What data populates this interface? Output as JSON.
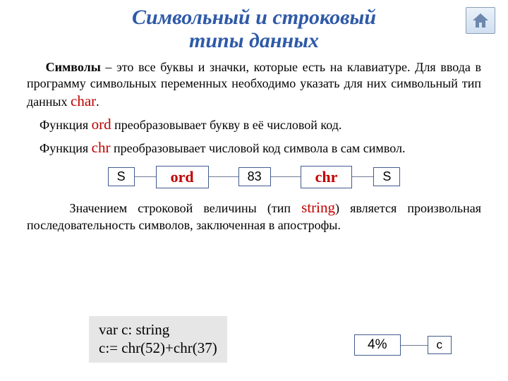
{
  "title": {
    "line1": "Символьный и строковый",
    "line2": "типы данных",
    "color": "#2e5aa8",
    "fontsize": 30
  },
  "home_icon": {
    "fill": "#6e87ad",
    "stroke": "#4a5f80"
  },
  "body_fontsize": 18,
  "keyword_color": "#c00000",
  "keyword_fontsize": 21,
  "para1": {
    "lead": "Символы",
    "rest": " – это все буквы и значки, которые есть на клавиатуре. Для ввода в программу символьных переменных необходимо указать для них символьный тип данных ",
    "kw": "char",
    "tail": "."
  },
  "para2": {
    "pre": "Функция ",
    "kw": "ord",
    "post": " преобразовывает букву в её числовой код."
  },
  "para3": {
    "pre": "Функция ",
    "kw": "chr",
    "post": " преобразовывает числовой код символа в сам символ."
  },
  "diagram": {
    "border_color": "#415b8e",
    "line_color": "#6f7b94",
    "plain_fontsize": 18,
    "func_fontsize": 22,
    "func_color": "#c00000",
    "n1": "S",
    "f1": "ord",
    "n2": "83",
    "f2": "chr",
    "n3": "S",
    "gap_short": 30,
    "gap_long": 42
  },
  "para4": {
    "pre": "Значением строковой величины (тип ",
    "kw": "string",
    "post": ") является произвольная последовательность символов, заключенная в апострофы."
  },
  "code": {
    "bg": "#e6e6e6",
    "fontsize": 21,
    "line1": "var c: string",
    "line2": "c:= chr(52)+chr(37)"
  },
  "result": {
    "val": "4%",
    "var": "c",
    "val_fontsize": 19,
    "var_fontsize": 17,
    "gap": 38
  }
}
